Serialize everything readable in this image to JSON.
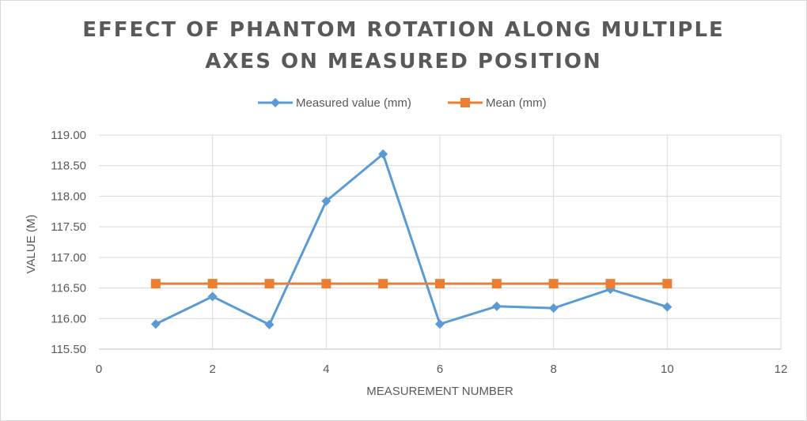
{
  "chart_data": {
    "type": "line",
    "title_lines": [
      "EFFECT OF PHANTOM ROTATION ALONG MULTIPLE",
      "AXES ON MEASURED POSITION"
    ],
    "xlabel": "MEASUREMENT NUMBER",
    "ylabel": "VALUE (M)",
    "xlim": [
      0,
      12
    ],
    "ylim": [
      115.5,
      119.0
    ],
    "xticks": [
      0,
      2,
      4,
      6,
      8,
      10,
      12
    ],
    "yticks": [
      "115.50",
      "116.00",
      "116.50",
      "117.00",
      "117.50",
      "118.00",
      "118.50",
      "119.00"
    ],
    "grid": true,
    "legend_position": "top",
    "x": [
      1,
      2,
      3,
      4,
      5,
      6,
      7,
      8,
      9,
      10
    ],
    "series": [
      {
        "name": "Measured value (mm)",
        "color": "#5b9bd5",
        "marker": "diamond",
        "values": [
          115.91,
          116.36,
          115.9,
          117.92,
          118.69,
          115.91,
          116.2,
          116.17,
          116.48,
          116.19
        ]
      },
      {
        "name": "Mean (mm)",
        "color": "#ed7d31",
        "marker": "square",
        "values": [
          116.57,
          116.57,
          116.57,
          116.57,
          116.57,
          116.57,
          116.57,
          116.57,
          116.57,
          116.57
        ]
      }
    ]
  }
}
